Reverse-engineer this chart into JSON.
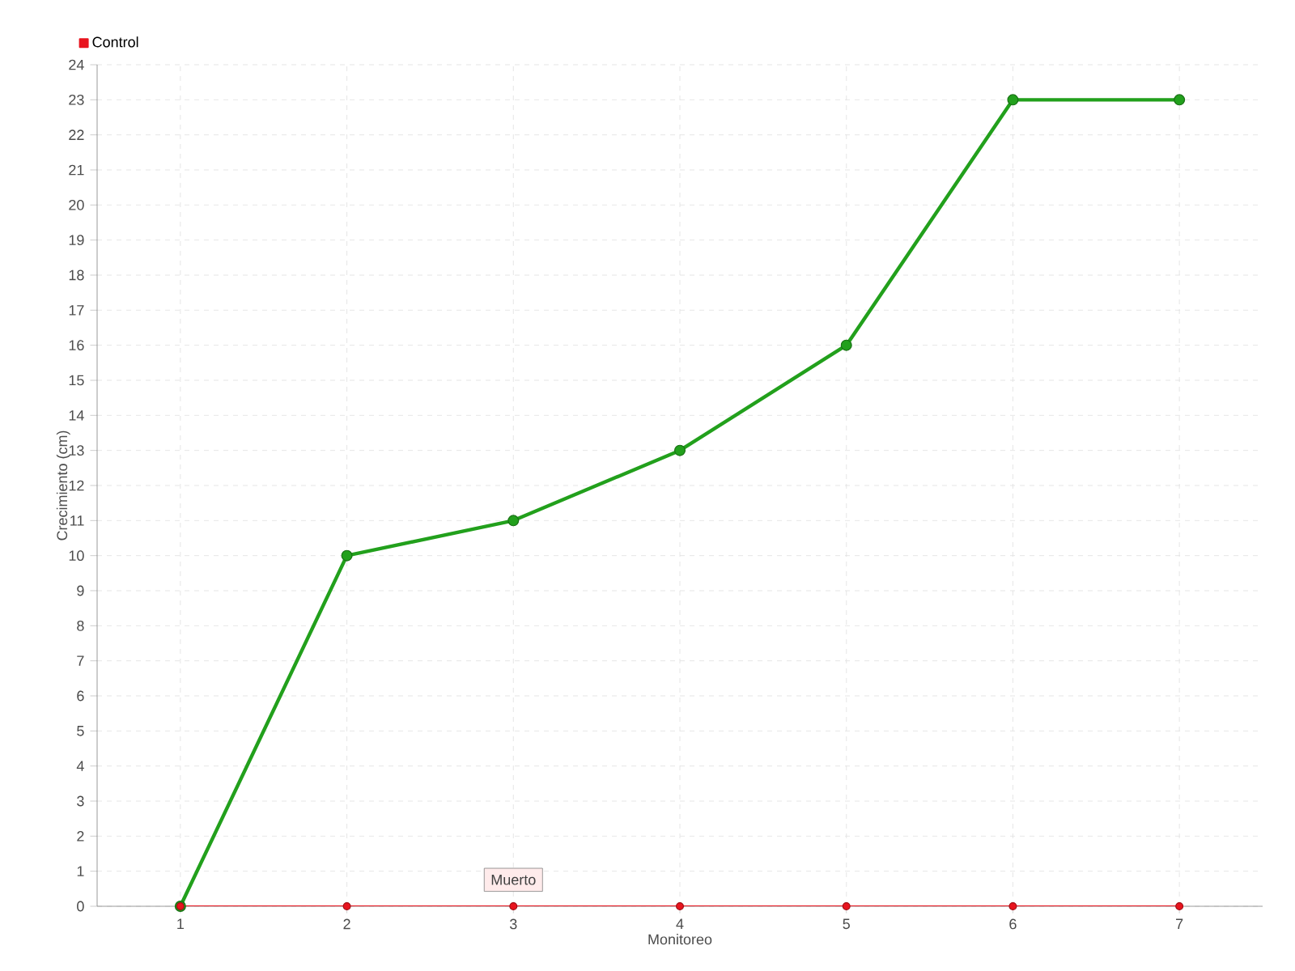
{
  "chart_data": {
    "type": "line",
    "xlabel": "Monitoreo",
    "ylabel": "Crecimiento (cm)",
    "categories": [
      "1",
      "2",
      "3",
      "4",
      "5",
      "6",
      "7"
    ],
    "series": [
      {
        "color": "#22a01c",
        "values": [
          0,
          10,
          11,
          13,
          16,
          23,
          23
        ]
      },
      {
        "name": "Control",
        "color": "#e8141e",
        "values": [
          0,
          0,
          0,
          0,
          0,
          0,
          0
        ]
      }
    ],
    "annotations": [
      {
        "text": "Muerto",
        "x": "3",
        "y": 0
      }
    ],
    "ylim": [
      0,
      24
    ],
    "yticks": [
      0,
      1,
      2,
      3,
      4,
      5,
      6,
      7,
      8,
      9,
      10,
      11,
      12,
      13,
      14,
      15,
      16,
      17,
      18,
      19,
      20,
      21,
      22,
      23,
      24
    ],
    "grid": true,
    "legend": "top left",
    "marker": "circle",
    "line_style": "solid"
  }
}
